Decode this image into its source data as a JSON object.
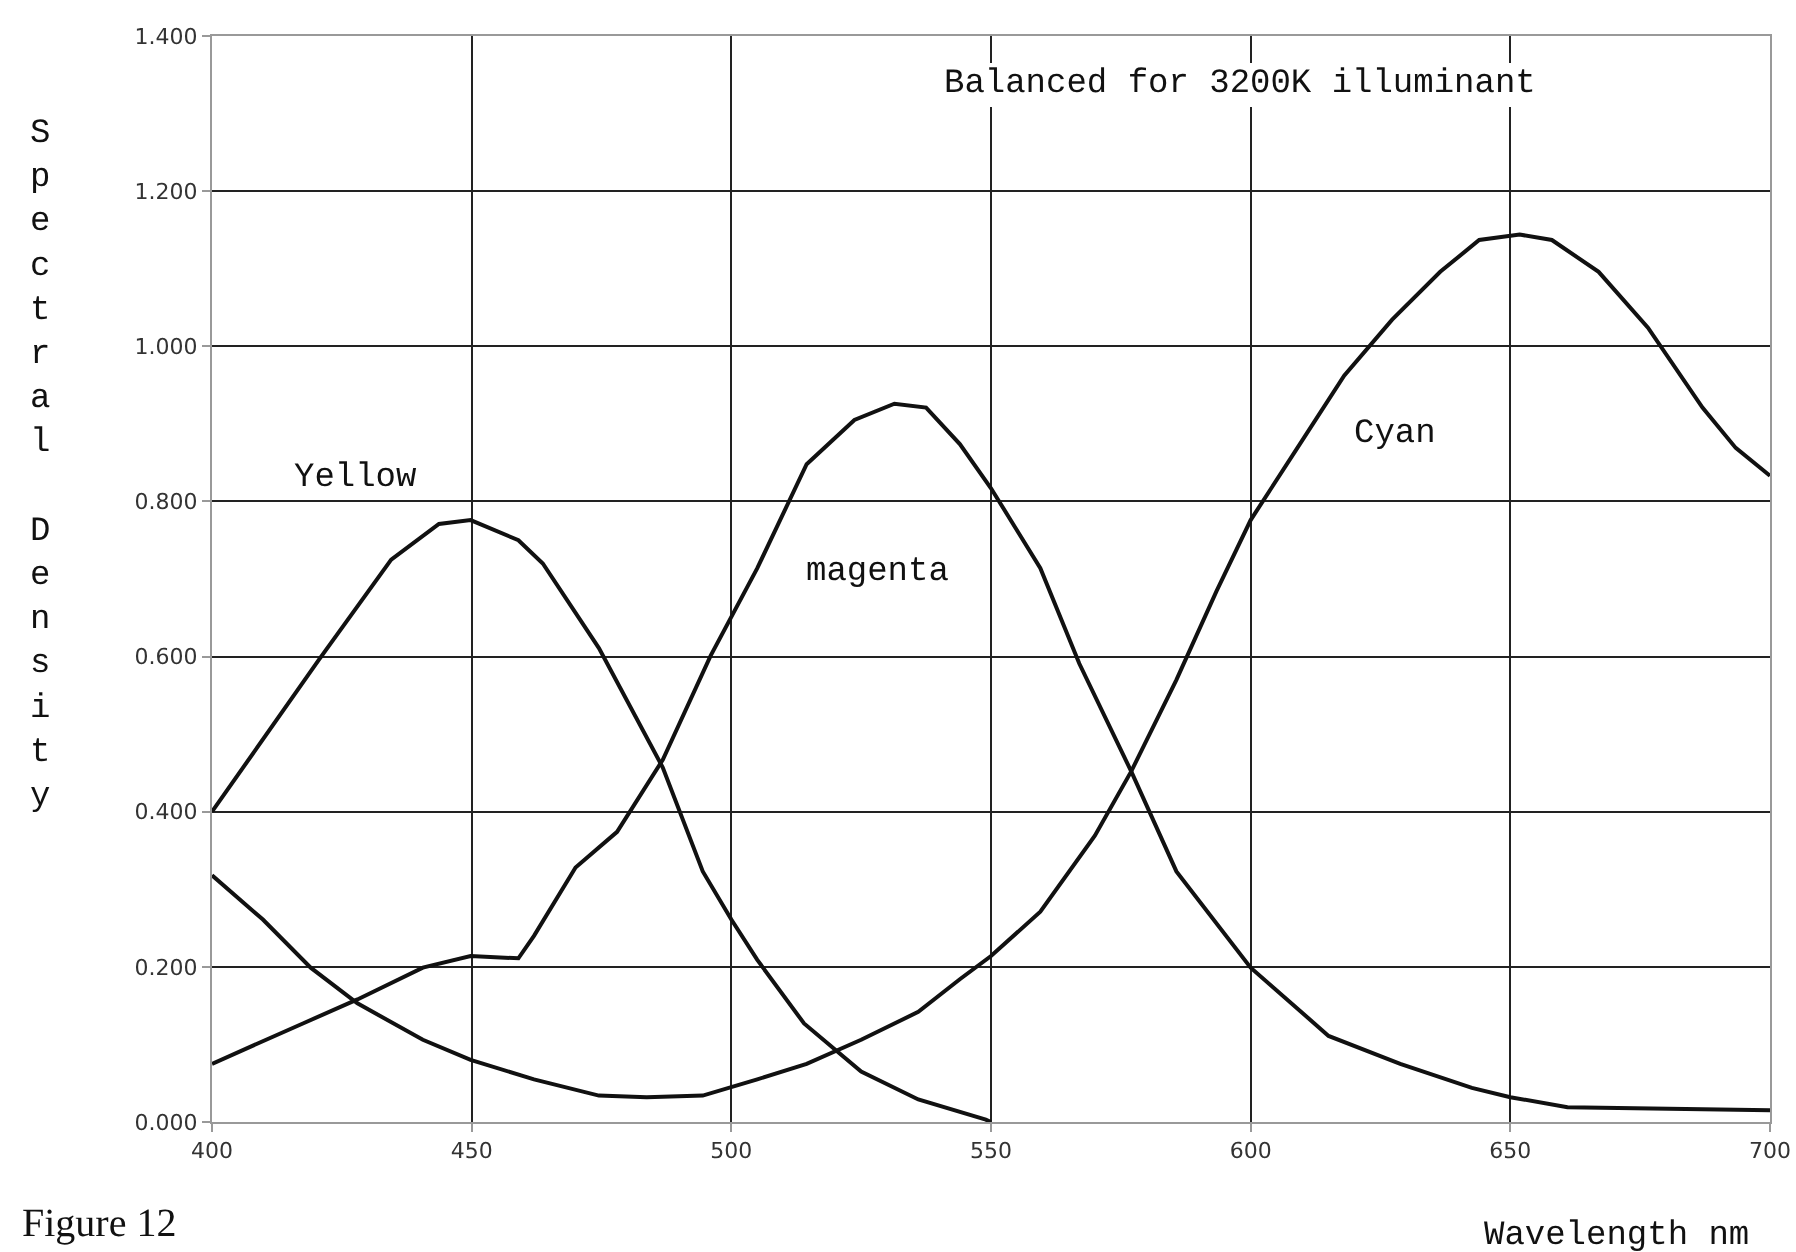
{
  "chart_data": {
    "type": "line",
    "xlabel": "Wavelength nm",
    "ylabel": "Spectral Density",
    "xlim": [
      400,
      700
    ],
    "xticks": [
      400,
      450,
      500,
      550,
      600,
      650,
      700
    ],
    "ylim": [
      0,
      1.4
    ],
    "yticks": [
      {
        "value": 0,
        "label": "0.000"
      },
      {
        "value": 0.2,
        "label": "0.200"
      },
      {
        "value": 0.4,
        "label": "0.400"
      },
      {
        "value": 0.6,
        "label": "0.600"
      },
      {
        "value": 0.8,
        "label": "0.800"
      },
      {
        "value": 1.0,
        "label": "1.000"
      },
      {
        "value": 1.2,
        "label": "1.200"
      },
      {
        "value": 1.4,
        "label": "1.400"
      }
    ],
    "grid": true,
    "legend": false,
    "marker": "none",
    "line_style": "solid",
    "series": [
      {
        "name": "Yellow",
        "color": "#111111",
        "x": [
          400,
          420.6,
          434.5,
          443.7,
          449.8,
          459,
          463.7,
          474.5,
          486.8,
          494.5,
          500,
          505,
          514,
          525,
          536,
          549,
          550
        ],
        "values": [
          0.4,
          0.596,
          0.725,
          0.771,
          0.776,
          0.75,
          0.72,
          0.611,
          0.457,
          0.323,
          0.261,
          0.209,
          0.127,
          0.065,
          0.029,
          0.003,
          0
        ]
      },
      {
        "name": "magenta",
        "color": "#111111",
        "x": [
          400,
          417.5,
          428,
          440.6,
          449.8,
          459,
          462,
          470,
          478,
          486.8,
          496,
          505,
          514.5,
          523.7,
          531.4,
          537.5,
          544,
          550,
          559.5,
          567,
          577,
          585.7,
          600,
          615,
          628.8,
          642.6,
          650,
          661,
          700
        ],
        "values": [
          0.075,
          0.127,
          0.158,
          0.199,
          0.214,
          0.211,
          0.24,
          0.328,
          0.374,
          0.467,
          0.601,
          0.714,
          0.848,
          0.905,
          0.926,
          0.921,
          0.874,
          0.817,
          0.714,
          0.591,
          0.452,
          0.323,
          0.199,
          0.111,
          0.075,
          0.044,
          0.032,
          0.019,
          0.015
        ]
      },
      {
        "name": "Cyan",
        "color": "#111111",
        "x": [
          400,
          409.8,
          419,
          428,
          440.6,
          449.8,
          462,
          474.5,
          483.7,
          494.5,
          505,
          514.5,
          525,
          536,
          544,
          550,
          559.5,
          570,
          577,
          585.7,
          593.4,
          600,
          609,
          618,
          627.2,
          636.5,
          644,
          651.8,
          658,
          667,
          676.5,
          687,
          693.4,
          700
        ],
        "values": [
          0.318,
          0.261,
          0.199,
          0.153,
          0.106,
          0.08,
          0.055,
          0.034,
          0.032,
          0.034,
          0.055,
          0.075,
          0.106,
          0.142,
          0.184,
          0.214,
          0.271,
          0.369,
          0.452,
          0.57,
          0.684,
          0.776,
          0.869,
          0.962,
          1.034,
          1.096,
          1.137,
          1.144,
          1.137,
          1.096,
          1.024,
          0.921,
          0.869,
          0.833
        ]
      }
    ],
    "annotations": [
      "Balanced for 3200K illuminant",
      "Figure 12"
    ]
  }
}
